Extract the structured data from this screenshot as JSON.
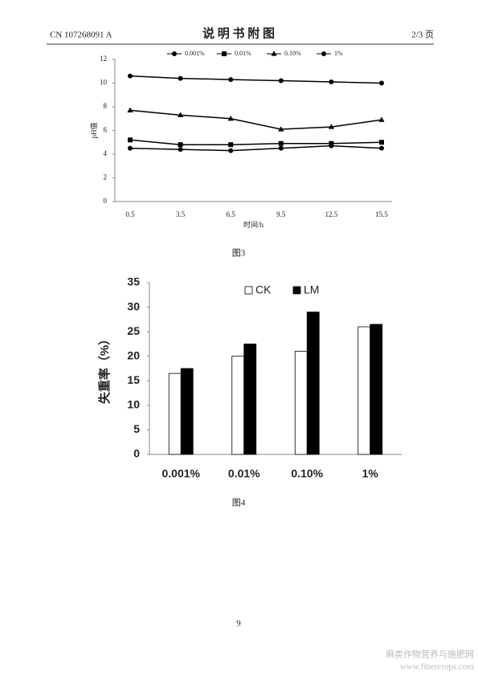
{
  "header": {
    "number": "CN 107268091 A",
    "title": "说 明 书 附 图",
    "page": "2/3 页"
  },
  "chart_data": [
    {
      "type": "line",
      "ylabel": "pH值",
      "xlabel": "时间/h",
      "categories": [
        "0.5",
        "3.5",
        "6.5",
        "9.5",
        "12.5",
        "15.5"
      ],
      "ylim": [
        0,
        12
      ],
      "yticks": [
        0,
        2,
        4,
        6,
        8,
        10,
        12
      ],
      "series": [
        {
          "name": "0.001%",
          "color": "#000000",
          "marker": "circle",
          "values": [
            4.5,
            4.4,
            4.3,
            4.5,
            4.7,
            4.5
          ]
        },
        {
          "name": "0.01%",
          "color": "#000000",
          "marker": "square",
          "values": [
            5.2,
            4.8,
            4.8,
            4.9,
            4.9,
            5.0
          ]
        },
        {
          "name": "0.10%",
          "color": "#000000",
          "marker": "triangle",
          "values": [
            7.7,
            7.3,
            7.0,
            6.1,
            6.3,
            6.9
          ]
        },
        {
          "name": "1%",
          "color": "#000000",
          "marker": "circle",
          "values": [
            10.6,
            10.4,
            10.3,
            10.2,
            10.1,
            10.0
          ]
        }
      ]
    },
    {
      "type": "bar",
      "ylabel": "失重率（%）",
      "categories": [
        "0.001%",
        "0.01%",
        "0.10%",
        "1%"
      ],
      "ylim": [
        0,
        35
      ],
      "yticks": [
        0,
        5,
        10,
        15,
        20,
        25,
        30,
        35
      ],
      "series": [
        {
          "name": "CK",
          "color": "#ffffff",
          "values": [
            16.5,
            20,
            21,
            26
          ]
        },
        {
          "name": "LM",
          "color": "#000000",
          "values": [
            17.5,
            22.5,
            29,
            26.5
          ]
        }
      ]
    }
  ],
  "captions": [
    "图3",
    "图4"
  ],
  "page_number": "9",
  "watermark": {
    "site": "麻类作物营养与施肥网",
    "url": "www.fibercrops.com"
  }
}
